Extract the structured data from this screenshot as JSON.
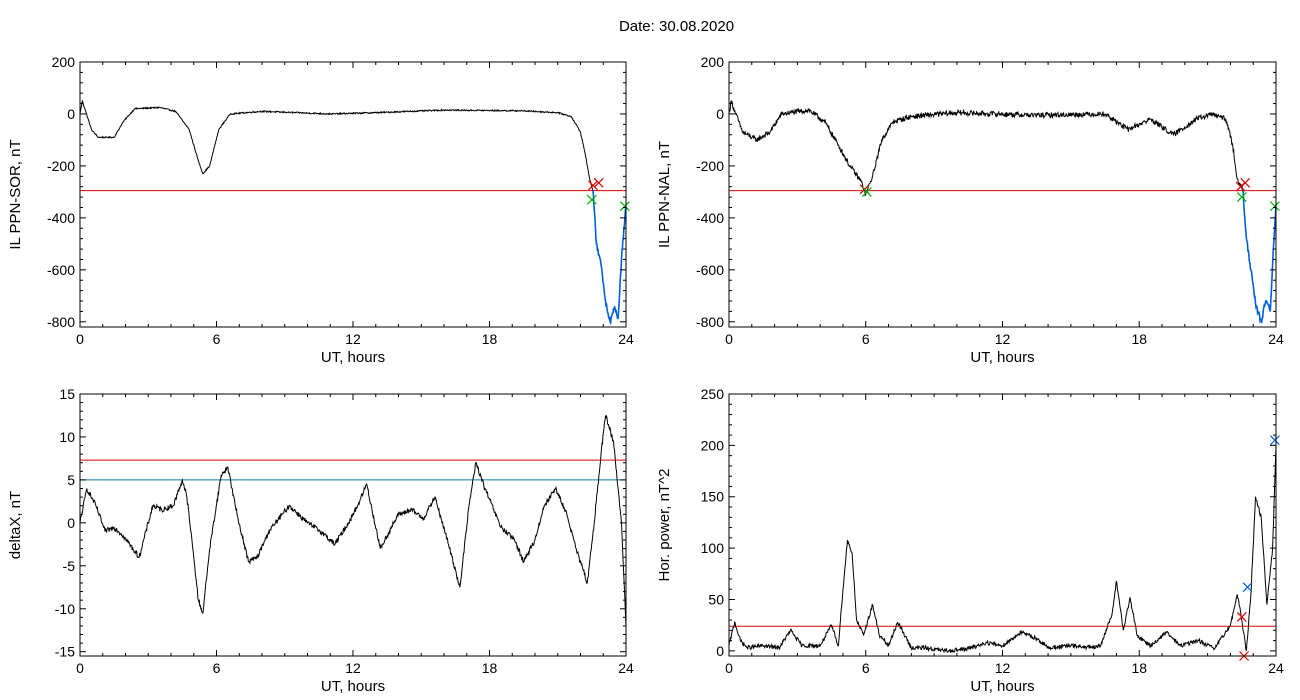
{
  "header": {
    "title": "Date:  30.08.2020"
  },
  "chart_data": [
    {
      "type": "line",
      "id": "sor",
      "ylabel": "IL PPN-SOR, nT",
      "xlabel": "UT, hours",
      "xlim": [
        0,
        24
      ],
      "ylim": [
        -820,
        200
      ],
      "xticks": [
        0,
        6,
        12,
        18,
        24
      ],
      "yticks": [
        -800,
        -600,
        -400,
        -200,
        0,
        200
      ],
      "thresholds": [
        {
          "y": -295,
          "color": "#e00000"
        }
      ],
      "series": [
        {
          "color": "#000000",
          "noise": 2.5,
          "points": [
            [
              0,
              0
            ],
            [
              0.1,
              50
            ],
            [
              0.25,
              10
            ],
            [
              0.5,
              -60
            ],
            [
              0.8,
              -90
            ],
            [
              1.5,
              -90
            ],
            [
              1.9,
              -30
            ],
            [
              2.4,
              20
            ],
            [
              3.5,
              25
            ],
            [
              4.2,
              10
            ],
            [
              4.8,
              -60
            ],
            [
              5.2,
              -180
            ],
            [
              5.4,
              -230
            ],
            [
              5.7,
              -200
            ],
            [
              6.1,
              -60
            ],
            [
              6.6,
              0
            ],
            [
              8,
              10
            ],
            [
              11,
              0
            ],
            [
              13,
              5
            ],
            [
              16,
              15
            ],
            [
              19.5,
              12
            ],
            [
              21,
              5
            ],
            [
              21.6,
              -10
            ],
            [
              22,
              -70
            ],
            [
              22.2,
              -150
            ],
            [
              22.4,
              -250
            ],
            [
              22.55,
              -295
            ]
          ]
        },
        {
          "color": "#0060e0",
          "noise": 12,
          "points": [
            [
              22.55,
              -295
            ],
            [
              22.7,
              -500
            ],
            [
              22.9,
              -580
            ],
            [
              23.1,
              -720
            ],
            [
              23.3,
              -800
            ],
            [
              23.5,
              -740
            ],
            [
              23.65,
              -790
            ],
            [
              23.8,
              -560
            ],
            [
              23.95,
              -400
            ],
            [
              24,
              -360
            ]
          ]
        }
      ],
      "markers": [
        {
          "x": 22.55,
          "y": -275,
          "color": "#e00000"
        },
        {
          "x": 22.8,
          "y": -265,
          "color": "#e00000"
        },
        {
          "x": 22.5,
          "y": -330,
          "color": "#00b000"
        },
        {
          "x": 23.95,
          "y": -355,
          "color": "#00b000"
        }
      ]
    },
    {
      "type": "line",
      "id": "nal",
      "ylabel": "IL PPN-NAL, nT",
      "xlabel": "UT, hours",
      "xlim": [
        0,
        24
      ],
      "ylim": [
        -820,
        200
      ],
      "xticks": [
        0,
        6,
        12,
        18,
        24
      ],
      "yticks": [
        -800,
        -600,
        -400,
        -200,
        0,
        200
      ],
      "thresholds": [
        {
          "y": -295,
          "color": "#e00000"
        }
      ],
      "series": [
        {
          "color": "#000000",
          "noise": 10,
          "points": [
            [
              0,
              0
            ],
            [
              0.1,
              50
            ],
            [
              0.3,
              0
            ],
            [
              0.6,
              -70
            ],
            [
              1.2,
              -100
            ],
            [
              1.8,
              -70
            ],
            [
              2.3,
              0
            ],
            [
              3.5,
              15
            ],
            [
              4.2,
              -30
            ],
            [
              4.8,
              -120
            ],
            [
              5.3,
              -200
            ],
            [
              5.8,
              -260
            ],
            [
              6.0,
              -310
            ],
            [
              6.3,
              -240
            ],
            [
              6.7,
              -100
            ],
            [
              7.2,
              -30
            ],
            [
              8,
              -10
            ],
            [
              10,
              5
            ],
            [
              13.5,
              -5
            ],
            [
              16.5,
              0
            ],
            [
              17.5,
              -60
            ],
            [
              18.5,
              -20
            ],
            [
              19.5,
              -80
            ],
            [
              20.5,
              -20
            ],
            [
              21.2,
              0
            ],
            [
              21.8,
              -20
            ],
            [
              22.1,
              -120
            ],
            [
              22.3,
              -250
            ],
            [
              22.55,
              -295
            ]
          ]
        },
        {
          "color": "#0060e0",
          "noise": 12,
          "points": [
            [
              22.55,
              -295
            ],
            [
              22.7,
              -480
            ],
            [
              22.9,
              -600
            ],
            [
              23.1,
              -730
            ],
            [
              23.35,
              -800
            ],
            [
              23.55,
              -720
            ],
            [
              23.75,
              -760
            ],
            [
              23.9,
              -500
            ],
            [
              24,
              -350
            ]
          ]
        }
      ],
      "markers": [
        {
          "x": 5.95,
          "y": -290,
          "color": "#e00000"
        },
        {
          "x": 6.05,
          "y": -300,
          "color": "#00b000"
        },
        {
          "x": 22.45,
          "y": -280,
          "color": "#e00000"
        },
        {
          "x": 22.65,
          "y": -265,
          "color": "#e00000"
        },
        {
          "x": 22.5,
          "y": -320,
          "color": "#00b000"
        },
        {
          "x": 23.95,
          "y": -355,
          "color": "#00b000"
        }
      ]
    },
    {
      "type": "line",
      "id": "deltax",
      "ylabel": "deltaX, nT",
      "xlabel": "UT, hours",
      "xlim": [
        0,
        24
      ],
      "ylim": [
        -15.5,
        15
      ],
      "xticks": [
        0,
        6,
        12,
        18,
        24
      ],
      "yticks": [
        -15,
        -10,
        -5,
        0,
        5,
        10,
        15
      ],
      "thresholds": [
        {
          "y": 7.3,
          "color": "#e00000"
        },
        {
          "y": 5.0,
          "color": "#007fa0"
        }
      ],
      "series": [
        {
          "color": "#000000",
          "noise": 0.3,
          "points": [
            [
              0,
              0
            ],
            [
              0.3,
              4
            ],
            [
              0.7,
              2
            ],
            [
              1.1,
              -1
            ],
            [
              1.5,
              -0.5
            ],
            [
              1.9,
              -1.5
            ],
            [
              2.6,
              -4
            ],
            [
              3.2,
              2
            ],
            [
              3.6,
              1.5
            ],
            [
              4.1,
              2
            ],
            [
              4.5,
              5
            ],
            [
              4.7,
              3
            ],
            [
              5.0,
              -4
            ],
            [
              5.2,
              -9
            ],
            [
              5.4,
              -10.5
            ],
            [
              5.7,
              -3
            ],
            [
              6.2,
              5.5
            ],
            [
              6.5,
              6.5
            ],
            [
              6.9,
              1
            ],
            [
              7.4,
              -4.5
            ],
            [
              7.8,
              -4
            ],
            [
              8.3,
              -1
            ],
            [
              9.2,
              2
            ],
            [
              10,
              0
            ],
            [
              10.6,
              -1
            ],
            [
              11.2,
              -2.5
            ],
            [
              11.8,
              0
            ],
            [
              12.2,
              2
            ],
            [
              12.6,
              4.5
            ],
            [
              13.2,
              -3
            ],
            [
              13.6,
              -1
            ],
            [
              14,
              1
            ],
            [
              14.6,
              1.5
            ],
            [
              15.1,
              0.5
            ],
            [
              15.6,
              3
            ],
            [
              16.2,
              -2.5
            ],
            [
              16.7,
              -7.5
            ],
            [
              17.1,
              2
            ],
            [
              17.4,
              7
            ],
            [
              17.8,
              4
            ],
            [
              18.5,
              -0.5
            ],
            [
              19.1,
              -2
            ],
            [
              19.5,
              -4.5
            ],
            [
              20,
              -2
            ],
            [
              20.4,
              2
            ],
            [
              20.9,
              4
            ],
            [
              21.4,
              1
            ],
            [
              21.8,
              -3
            ],
            [
              22.3,
              -7
            ],
            [
              22.6,
              0
            ],
            [
              22.9,
              8
            ],
            [
              23.1,
              12.5
            ],
            [
              23.45,
              9.5
            ],
            [
              23.8,
              0
            ],
            [
              24,
              -12
            ]
          ]
        }
      ],
      "markers": []
    },
    {
      "type": "line",
      "id": "power",
      "ylabel": "Hor. power, nT^2",
      "xlabel": "UT, hours",
      "xlim": [
        0,
        24
      ],
      "ylim": [
        -5,
        250
      ],
      "xticks": [
        0,
        6,
        12,
        18,
        24
      ],
      "yticks": [
        0,
        50,
        100,
        150,
        200,
        250
      ],
      "thresholds": [
        {
          "y": 24,
          "color": "#e00000"
        }
      ],
      "series": [
        {
          "color": "#000000",
          "noise": 2,
          "points": [
            [
              0,
              5
            ],
            [
              0.25,
              28
            ],
            [
              0.5,
              10
            ],
            [
              0.8,
              3
            ],
            [
              1.5,
              5
            ],
            [
              2.2,
              3
            ],
            [
              2.7,
              20
            ],
            [
              3.2,
              5
            ],
            [
              4.0,
              5
            ],
            [
              4.5,
              25
            ],
            [
              4.8,
              5
            ],
            [
              5.0,
              60
            ],
            [
              5.2,
              108
            ],
            [
              5.4,
              95
            ],
            [
              5.6,
              30
            ],
            [
              5.9,
              15
            ],
            [
              6.3,
              45
            ],
            [
              6.6,
              15
            ],
            [
              7.0,
              5
            ],
            [
              7.4,
              28
            ],
            [
              8,
              3
            ],
            [
              8.6,
              3
            ],
            [
              9.5,
              0
            ],
            [
              10.5,
              2
            ],
            [
              11.3,
              8
            ],
            [
              12,
              5
            ],
            [
              12.8,
              18
            ],
            [
              13.5,
              12
            ],
            [
              14,
              3
            ],
            [
              15,
              5
            ],
            [
              16,
              3
            ],
            [
              16.3,
              5
            ],
            [
              16.8,
              35
            ],
            [
              17.0,
              68
            ],
            [
              17.3,
              20
            ],
            [
              17.6,
              52
            ],
            [
              17.9,
              15
            ],
            [
              18.5,
              5
            ],
            [
              19.2,
              18
            ],
            [
              19.8,
              5
            ],
            [
              20.6,
              10
            ],
            [
              21.3,
              2
            ],
            [
              22.0,
              25
            ],
            [
              22.3,
              55
            ],
            [
              22.5,
              30
            ],
            [
              22.7,
              0
            ],
            [
              22.9,
              55
            ],
            [
              23.1,
              150
            ],
            [
              23.35,
              130
            ],
            [
              23.6,
              45
            ],
            [
              23.85,
              100
            ],
            [
              24,
              200
            ]
          ]
        }
      ],
      "markers": [
        {
          "x": 22.5,
          "y": 33,
          "color": "#e00000"
        },
        {
          "x": 22.6,
          "y": -5,
          "color": "#e00000"
        },
        {
          "x": 22.75,
          "y": 62,
          "color": "#0060e0"
        },
        {
          "x": 23.95,
          "y": 205,
          "color": "#0060e0"
        }
      ]
    }
  ]
}
